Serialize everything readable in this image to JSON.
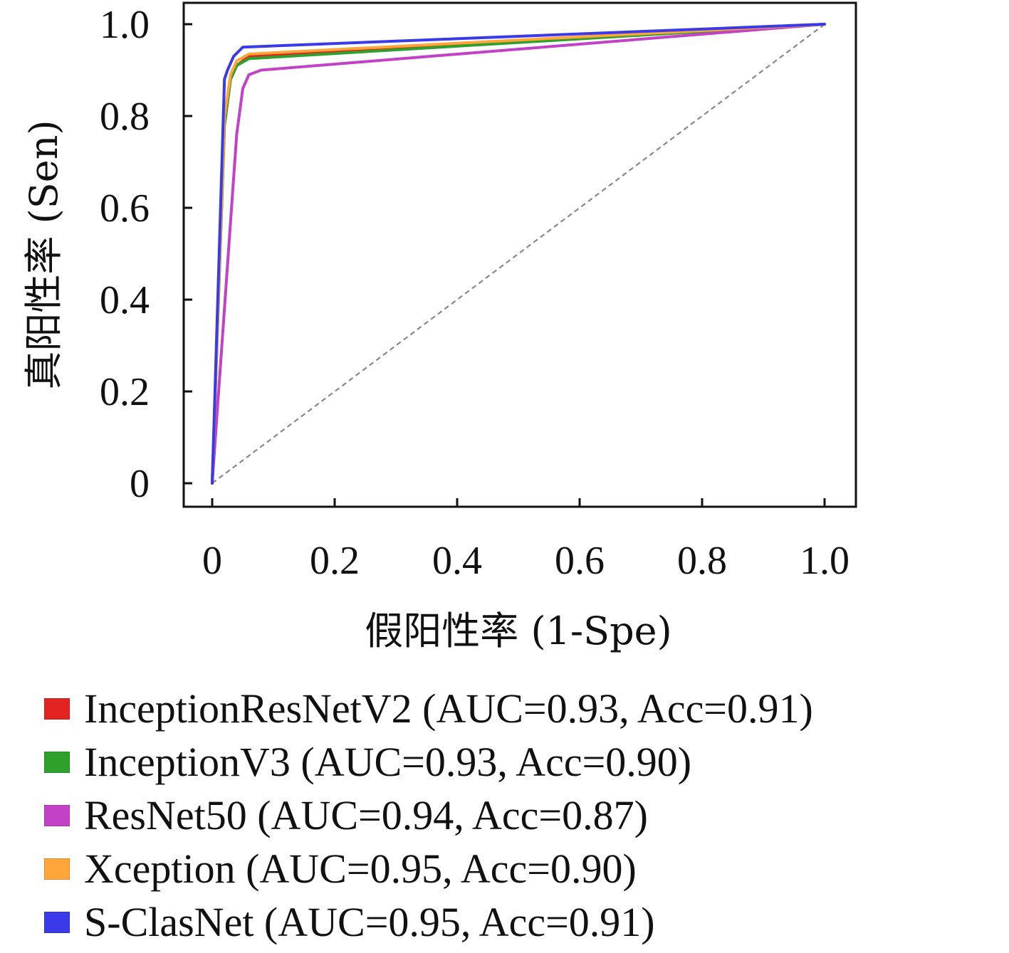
{
  "chart_data": {
    "type": "line",
    "xlabel": "假阳性率 (1-Spe)",
    "ylabel": "真阳性率 (Sen)",
    "xlim": [
      0,
      1
    ],
    "ylim": [
      0,
      1
    ],
    "x_ticks": [
      "0",
      "0.2",
      "0.4",
      "0.6",
      "0.8",
      "1.0"
    ],
    "y_ticks": [
      "0",
      "0.2",
      "0.4",
      "0.6",
      "0.8",
      "1.0"
    ],
    "x_tick_values": [
      0,
      0.2,
      0.4,
      0.6,
      0.8,
      1.0
    ],
    "y_tick_values": [
      0,
      0.2,
      0.4,
      0.6,
      0.8,
      1.0
    ],
    "grid": false,
    "legend_position": "bottom",
    "reference_line": {
      "x": [
        0,
        1
      ],
      "y": [
        0,
        1
      ],
      "style": "dashed",
      "color": "#888888"
    },
    "series": [
      {
        "name": "InceptionResNetV2 (AUC=0.93, Acc=0.91)",
        "color": "#e32222",
        "x": [
          0,
          0.02,
          0.03,
          0.04,
          0.06,
          1.0
        ],
        "y": [
          0,
          0.78,
          0.88,
          0.91,
          0.93,
          1.0
        ]
      },
      {
        "name": "InceptionV3 (AUC=0.93, Acc=0.90)",
        "color": "#2ea02c",
        "x": [
          0,
          0.02,
          0.03,
          0.04,
          0.06,
          1.0
        ],
        "y": [
          0,
          0.78,
          0.88,
          0.91,
          0.925,
          1.0
        ]
      },
      {
        "name": "ResNet50 (AUC=0.94, Acc=0.87)",
        "color": "#c241c6",
        "x": [
          0,
          0.04,
          0.05,
          0.06,
          0.08,
          1.0
        ],
        "y": [
          0,
          0.76,
          0.86,
          0.89,
          0.9,
          1.0
        ]
      },
      {
        "name": "Xception (AUC=0.95, Acc=0.90)",
        "color": "#ffa53a",
        "x": [
          0,
          0.02,
          0.03,
          0.04,
          0.06,
          1.0
        ],
        "y": [
          0,
          0.8,
          0.89,
          0.92,
          0.935,
          1.0
        ]
      },
      {
        "name": "S-ClasNet (AUC=0.95, Acc=0.91)",
        "color": "#3a3ae8",
        "x": [
          0,
          0.02,
          0.025,
          0.035,
          0.05,
          1.0
        ],
        "y": [
          0,
          0.88,
          0.9,
          0.93,
          0.95,
          1.0
        ]
      }
    ]
  }
}
